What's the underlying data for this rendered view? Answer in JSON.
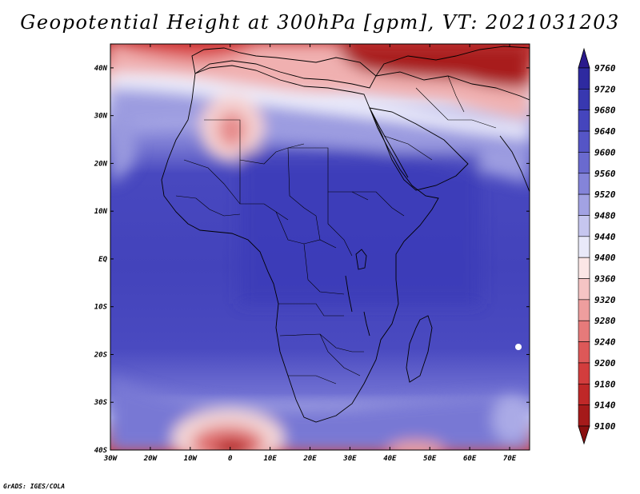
{
  "title": "Geopotential Height at 300hPa [gpm], VT: 2021031203",
  "credit": "GrADS: IGES/COLA",
  "map": {
    "lon_range": [
      -30,
      75
    ],
    "lat_range": [
      -40,
      45
    ],
    "lon_ticks": [
      {
        "value": -30,
        "label": "30W"
      },
      {
        "value": -20,
        "label": "20W"
      },
      {
        "value": -10,
        "label": "10W"
      },
      {
        "value": 0,
        "label": "0"
      },
      {
        "value": 10,
        "label": "10E"
      },
      {
        "value": 20,
        "label": "20E"
      },
      {
        "value": 30,
        "label": "30E"
      },
      {
        "value": 40,
        "label": "40E"
      },
      {
        "value": 50,
        "label": "50E"
      },
      {
        "value": 60,
        "label": "60E"
      },
      {
        "value": 70,
        "label": "70E"
      }
    ],
    "lat_ticks": [
      {
        "value": 40,
        "label": "40N"
      },
      {
        "value": 30,
        "label": "30N"
      },
      {
        "value": 20,
        "label": "20N"
      },
      {
        "value": 10,
        "label": "10N"
      },
      {
        "value": 0,
        "label": "EQ"
      },
      {
        "value": -10,
        "label": "10S"
      },
      {
        "value": -20,
        "label": "20S"
      },
      {
        "value": -30,
        "label": "30S"
      },
      {
        "value": -40,
        "label": "40S"
      }
    ]
  },
  "colorbar": {
    "levels": [
      9760,
      9720,
      9680,
      9640,
      9600,
      9560,
      9520,
      9480,
      9440,
      9400,
      9360,
      9320,
      9280,
      9240,
      9200,
      9180,
      9140,
      9100
    ],
    "colors": [
      "#2a1a8c",
      "#2e2aa0",
      "#3838b0",
      "#4545bd",
      "#5555c6",
      "#6a6acf",
      "#8484d9",
      "#a2a2e3",
      "#c6c6ef",
      "#e9e9f9",
      "#fbe6e6",
      "#f5c4c4",
      "#ee9e9e",
      "#e67a7a",
      "#dd5858",
      "#d23d3d",
      "#bf2828",
      "#a51a1a",
      "#8a1010"
    ]
  }
}
